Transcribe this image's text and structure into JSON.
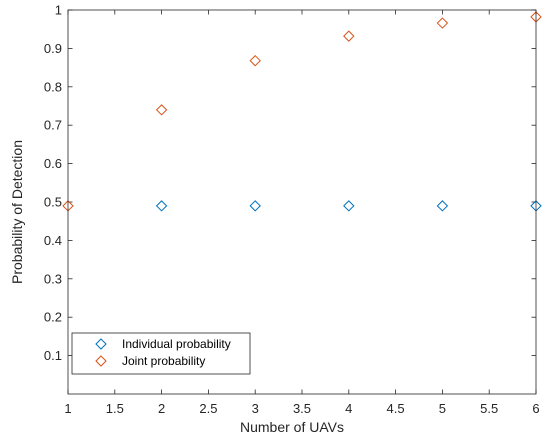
{
  "chart_data": {
    "type": "scatter",
    "title": "",
    "xlabel": "Number of UAVs",
    "ylabel": "Probability of Detection",
    "xlim": [
      1,
      6
    ],
    "ylim": [
      0,
      1
    ],
    "xticks": [
      1,
      1.5,
      2,
      2.5,
      3,
      3.5,
      4,
      4.5,
      5,
      5.5,
      6
    ],
    "yticks": [
      0.1,
      0.2,
      0.3,
      0.4,
      0.5,
      0.6,
      0.7,
      0.8,
      0.9,
      1
    ],
    "grid": false,
    "legend": "bottom-left",
    "marker": "diamond",
    "series": [
      {
        "name": "Individual probability",
        "color": "#0072BD",
        "x": [
          2,
          3,
          4,
          5,
          6
        ],
        "y": [
          0.49,
          0.49,
          0.49,
          0.49,
          0.49
        ]
      },
      {
        "name": "Joint probability",
        "color": "#D95319",
        "x": [
          1,
          2,
          3,
          4,
          5,
          6
        ],
        "y": [
          0.49,
          0.74,
          0.868,
          0.932,
          0.966,
          0.982
        ]
      }
    ]
  }
}
